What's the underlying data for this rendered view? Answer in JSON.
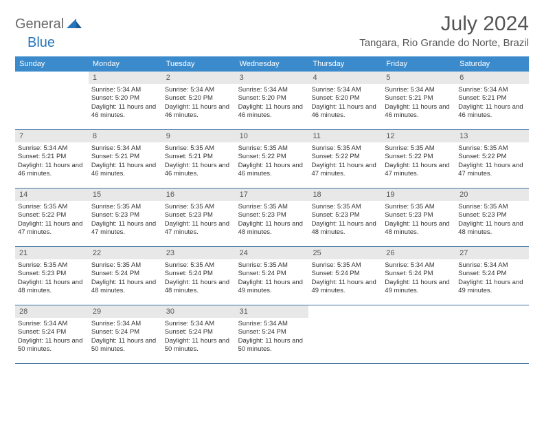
{
  "brand": {
    "part1": "General",
    "part2": "Blue"
  },
  "title": "July 2024",
  "location": "Tangara, Rio Grande do Norte, Brazil",
  "colors": {
    "header_bg": "#3b8bcc",
    "daynum_bg": "#e8e8e8",
    "rule": "#3b6f9c",
    "text": "#333333",
    "muted": "#555555"
  },
  "days_of_week": [
    "Sunday",
    "Monday",
    "Tuesday",
    "Wednesday",
    "Thursday",
    "Friday",
    "Saturday"
  ],
  "weeks": [
    [
      {
        "n": "",
        "sr": "",
        "ss": "",
        "dl": ""
      },
      {
        "n": "1",
        "sr": "Sunrise: 5:34 AM",
        "ss": "Sunset: 5:20 PM",
        "dl": "Daylight: 11 hours and 46 minutes."
      },
      {
        "n": "2",
        "sr": "Sunrise: 5:34 AM",
        "ss": "Sunset: 5:20 PM",
        "dl": "Daylight: 11 hours and 46 minutes."
      },
      {
        "n": "3",
        "sr": "Sunrise: 5:34 AM",
        "ss": "Sunset: 5:20 PM",
        "dl": "Daylight: 11 hours and 46 minutes."
      },
      {
        "n": "4",
        "sr": "Sunrise: 5:34 AM",
        "ss": "Sunset: 5:20 PM",
        "dl": "Daylight: 11 hours and 46 minutes."
      },
      {
        "n": "5",
        "sr": "Sunrise: 5:34 AM",
        "ss": "Sunset: 5:21 PM",
        "dl": "Daylight: 11 hours and 46 minutes."
      },
      {
        "n": "6",
        "sr": "Sunrise: 5:34 AM",
        "ss": "Sunset: 5:21 PM",
        "dl": "Daylight: 11 hours and 46 minutes."
      }
    ],
    [
      {
        "n": "7",
        "sr": "Sunrise: 5:34 AM",
        "ss": "Sunset: 5:21 PM",
        "dl": "Daylight: 11 hours and 46 minutes."
      },
      {
        "n": "8",
        "sr": "Sunrise: 5:34 AM",
        "ss": "Sunset: 5:21 PM",
        "dl": "Daylight: 11 hours and 46 minutes."
      },
      {
        "n": "9",
        "sr": "Sunrise: 5:35 AM",
        "ss": "Sunset: 5:21 PM",
        "dl": "Daylight: 11 hours and 46 minutes."
      },
      {
        "n": "10",
        "sr": "Sunrise: 5:35 AM",
        "ss": "Sunset: 5:22 PM",
        "dl": "Daylight: 11 hours and 46 minutes."
      },
      {
        "n": "11",
        "sr": "Sunrise: 5:35 AM",
        "ss": "Sunset: 5:22 PM",
        "dl": "Daylight: 11 hours and 47 minutes."
      },
      {
        "n": "12",
        "sr": "Sunrise: 5:35 AM",
        "ss": "Sunset: 5:22 PM",
        "dl": "Daylight: 11 hours and 47 minutes."
      },
      {
        "n": "13",
        "sr": "Sunrise: 5:35 AM",
        "ss": "Sunset: 5:22 PM",
        "dl": "Daylight: 11 hours and 47 minutes."
      }
    ],
    [
      {
        "n": "14",
        "sr": "Sunrise: 5:35 AM",
        "ss": "Sunset: 5:22 PM",
        "dl": "Daylight: 11 hours and 47 minutes."
      },
      {
        "n": "15",
        "sr": "Sunrise: 5:35 AM",
        "ss": "Sunset: 5:23 PM",
        "dl": "Daylight: 11 hours and 47 minutes."
      },
      {
        "n": "16",
        "sr": "Sunrise: 5:35 AM",
        "ss": "Sunset: 5:23 PM",
        "dl": "Daylight: 11 hours and 47 minutes."
      },
      {
        "n": "17",
        "sr": "Sunrise: 5:35 AM",
        "ss": "Sunset: 5:23 PM",
        "dl": "Daylight: 11 hours and 48 minutes."
      },
      {
        "n": "18",
        "sr": "Sunrise: 5:35 AM",
        "ss": "Sunset: 5:23 PM",
        "dl": "Daylight: 11 hours and 48 minutes."
      },
      {
        "n": "19",
        "sr": "Sunrise: 5:35 AM",
        "ss": "Sunset: 5:23 PM",
        "dl": "Daylight: 11 hours and 48 minutes."
      },
      {
        "n": "20",
        "sr": "Sunrise: 5:35 AM",
        "ss": "Sunset: 5:23 PM",
        "dl": "Daylight: 11 hours and 48 minutes."
      }
    ],
    [
      {
        "n": "21",
        "sr": "Sunrise: 5:35 AM",
        "ss": "Sunset: 5:23 PM",
        "dl": "Daylight: 11 hours and 48 minutes."
      },
      {
        "n": "22",
        "sr": "Sunrise: 5:35 AM",
        "ss": "Sunset: 5:24 PM",
        "dl": "Daylight: 11 hours and 48 minutes."
      },
      {
        "n": "23",
        "sr": "Sunrise: 5:35 AM",
        "ss": "Sunset: 5:24 PM",
        "dl": "Daylight: 11 hours and 48 minutes."
      },
      {
        "n": "24",
        "sr": "Sunrise: 5:35 AM",
        "ss": "Sunset: 5:24 PM",
        "dl": "Daylight: 11 hours and 49 minutes."
      },
      {
        "n": "25",
        "sr": "Sunrise: 5:35 AM",
        "ss": "Sunset: 5:24 PM",
        "dl": "Daylight: 11 hours and 49 minutes."
      },
      {
        "n": "26",
        "sr": "Sunrise: 5:34 AM",
        "ss": "Sunset: 5:24 PM",
        "dl": "Daylight: 11 hours and 49 minutes."
      },
      {
        "n": "27",
        "sr": "Sunrise: 5:34 AM",
        "ss": "Sunset: 5:24 PM",
        "dl": "Daylight: 11 hours and 49 minutes."
      }
    ],
    [
      {
        "n": "28",
        "sr": "Sunrise: 5:34 AM",
        "ss": "Sunset: 5:24 PM",
        "dl": "Daylight: 11 hours and 50 minutes."
      },
      {
        "n": "29",
        "sr": "Sunrise: 5:34 AM",
        "ss": "Sunset: 5:24 PM",
        "dl": "Daylight: 11 hours and 50 minutes."
      },
      {
        "n": "30",
        "sr": "Sunrise: 5:34 AM",
        "ss": "Sunset: 5:24 PM",
        "dl": "Daylight: 11 hours and 50 minutes."
      },
      {
        "n": "31",
        "sr": "Sunrise: 5:34 AM",
        "ss": "Sunset: 5:24 PM",
        "dl": "Daylight: 11 hours and 50 minutes."
      },
      {
        "n": "",
        "sr": "",
        "ss": "",
        "dl": ""
      },
      {
        "n": "",
        "sr": "",
        "ss": "",
        "dl": ""
      },
      {
        "n": "",
        "sr": "",
        "ss": "",
        "dl": ""
      }
    ]
  ]
}
